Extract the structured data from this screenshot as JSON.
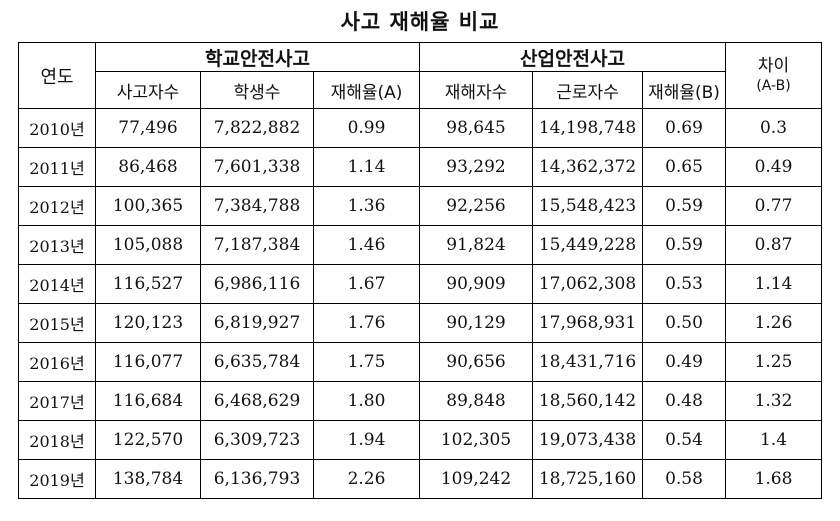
{
  "title": "사고 재해율 비교",
  "headers": {
    "year": "연도",
    "school_group": "학교안전사고",
    "industry_group": "산업안전사고",
    "diff": "차이",
    "diff_sub": "(A-B)",
    "school_cols": [
      "사고자수",
      "학생수",
      "재해율(A)"
    ],
    "industry_cols": [
      "재해자수",
      "근로자수",
      "재해율(B)"
    ]
  },
  "rows": [
    [
      "2010년",
      "77,496",
      "7,822,882",
      "0.99",
      "98,645",
      "14,198,748",
      "0.69",
      "0.3"
    ],
    [
      "2011년",
      "86,468",
      "7,601,338",
      "1.14",
      "93,292",
      "14,362,372",
      "0.65",
      "0.49"
    ],
    [
      "2012년",
      "100,365",
      "7,384,788",
      "1.36",
      "92,256",
      "15,548,423",
      "0.59",
      "0.77"
    ],
    [
      "2013년",
      "105,088",
      "7,187,384",
      "1.46",
      "91,824",
      "15,449,228",
      "0.59",
      "0.87"
    ],
    [
      "2014년",
      "116,527",
      "6,986,116",
      "1.67",
      "90,909",
      "17,062,308",
      "0.53",
      "1.14"
    ],
    [
      "2015년",
      "120,123",
      "6,819,927",
      "1.76",
      "90,129",
      "17,968,931",
      "0.50",
      "1.26"
    ],
    [
      "2016년",
      "116,077",
      "6,635,784",
      "1.75",
      "90,656",
      "18,431,716",
      "0.49",
      "1.25"
    ],
    [
      "2017년",
      "116,684",
      "6,468,629",
      "1.80",
      "89,848",
      "18,560,142",
      "0.48",
      "1.32"
    ],
    [
      "2018년",
      "122,570",
      "6,309,723",
      "1.94",
      "102,305",
      "19,073,438",
      "0.54",
      "1.4"
    ],
    [
      "2019년",
      "138,784",
      "6,136,793",
      "2.26",
      "109,242",
      "18,725,160",
      "0.58",
      "1.68"
    ]
  ]
}
